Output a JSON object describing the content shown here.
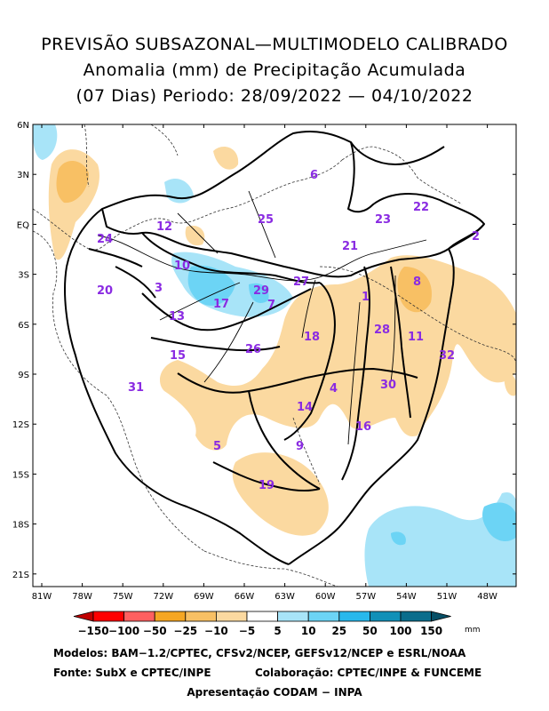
{
  "title": {
    "line1": "PREVISÃO SUBSAZONAL—MULTIMODELO CALIBRADO",
    "line2": "Anomalia (mm) de Precipitação Acumulada",
    "line3": "(07 Dias) Periodo: 28/09/2022 — 04/10/2022"
  },
  "map": {
    "lat_labels": [
      "6N",
      "3N",
      "EQ",
      "3S",
      "6S",
      "9S",
      "12S",
      "15S",
      "18S",
      "21S"
    ],
    "lon_labels": [
      "81W",
      "78W",
      "75W",
      "72W",
      "69W",
      "66W",
      "63W",
      "60W",
      "57W",
      "54W",
      "51W",
      "48W"
    ],
    "basins": [
      "1",
      "2",
      "3",
      "4",
      "5",
      "6",
      "7",
      "8",
      "9",
      "10",
      "11",
      "12",
      "13",
      "14",
      "15",
      "16",
      "17",
      "18",
      "19",
      "20",
      "21",
      "22",
      "23",
      "24",
      "25",
      "26",
      "27",
      "28",
      "29",
      "30",
      "31",
      "32"
    ]
  },
  "colorbar": {
    "labels": [
      "-150",
      "-100",
      "-50",
      "-25",
      "-10",
      "-5",
      "5",
      "10",
      "25",
      "50",
      "100",
      "150"
    ],
    "unit": "mm",
    "colors": [
      "#c00000",
      "#ff0000",
      "#ff6060",
      "#f5a623",
      "#f8c064",
      "#fbd9a0",
      "#ffffff",
      "#a8e4f8",
      "#6cd4f5",
      "#28b8ec",
      "#1190b8",
      "#0a6d8c",
      "#074f66"
    ]
  },
  "footer": {
    "line1": "Modelos: BAM−1.2/CPTEC, CFSv2/NCEP, GEFSv12/NCEP e ESRL/NOAA",
    "line2_left": "Fonte: SubX e CPTEC/INPE",
    "line2_right": "Colaboração: CPTEC/INPE & FUNCEME",
    "line3": "Apresentação CODAM − INPA"
  }
}
